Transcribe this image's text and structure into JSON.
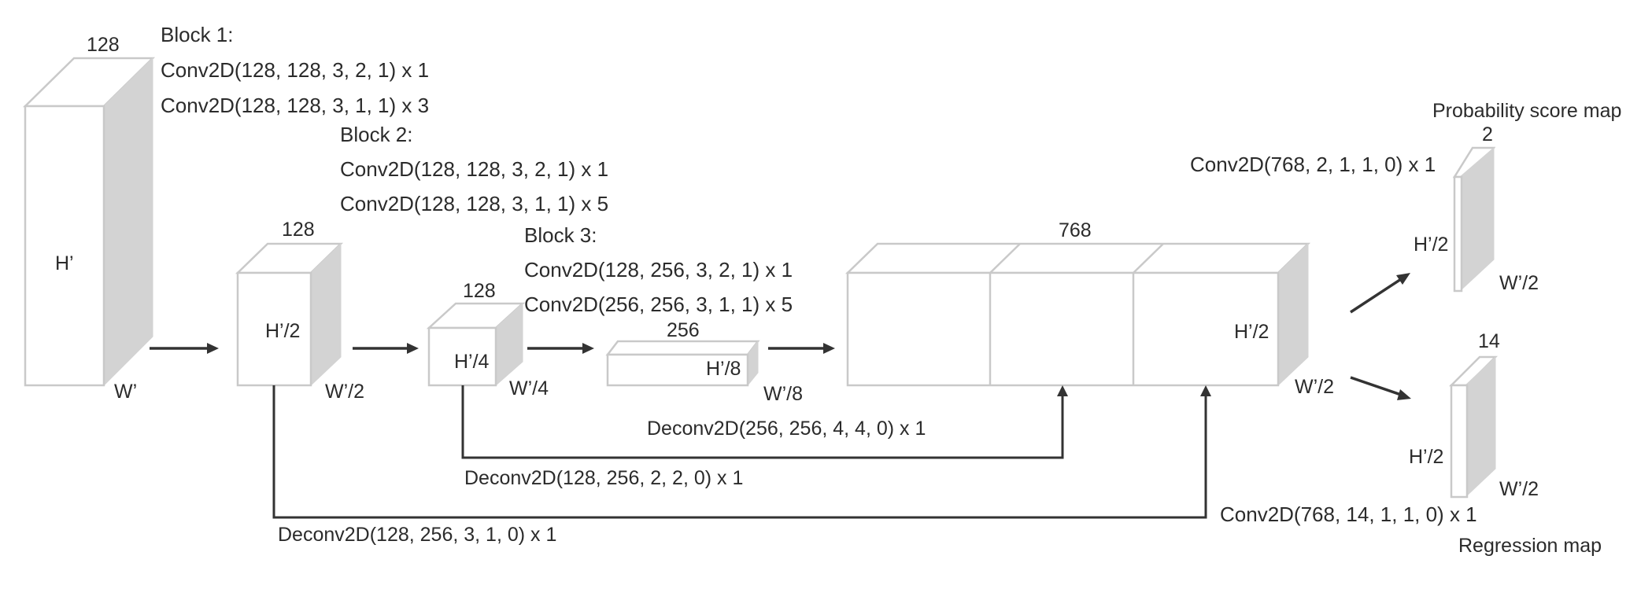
{
  "input_block": {
    "depth": "128",
    "height": "H’",
    "width": "W’"
  },
  "block1": {
    "title": "Block 1:",
    "line1": "Conv2D(128, 128, 3, 2, 1) x 1",
    "line2": "Conv2D(128, 128, 3, 1, 1) x 3",
    "output": {
      "depth": "128",
      "height": "H’/2",
      "width": "W’/2"
    }
  },
  "block2": {
    "title": "Block 2:",
    "line1": "Conv2D(128, 128, 3, 2, 1) x 1",
    "line2": "Conv2D(128, 128, 3, 1, 1) x 5",
    "output": {
      "depth": "128",
      "height": "H’/4",
      "width": "W’/4"
    }
  },
  "block3": {
    "title": "Block 3:",
    "line1": "Conv2D(128, 256, 3, 2, 1) x 1",
    "line2": "Conv2D(256, 256, 3, 1, 1) x 5",
    "output": {
      "depth": "256",
      "height": "H’/8",
      "width": "W’/8"
    }
  },
  "concat": {
    "depth": "768",
    "height": "H’/2",
    "width": "W’/2"
  },
  "deconvs": {
    "d1": "Deconv2D(256, 256, 4, 4, 0) x 1",
    "d2": "Deconv2D(128, 256, 2, 2, 0) x 1",
    "d3": "Deconv2D(128, 256, 3, 1, 0) x 1"
  },
  "prob_head": {
    "title": "Probability score map",
    "conv": "Conv2D(768, 2, 1, 1, 0) x 1",
    "depth": "2",
    "height": "H’/2",
    "width": "W’/2"
  },
  "reg_head": {
    "title": "Regression map",
    "conv": "Conv2D(768, 14, 1, 1, 0) x 1",
    "depth": "14",
    "height": "H’/2",
    "width": "W’/2"
  }
}
